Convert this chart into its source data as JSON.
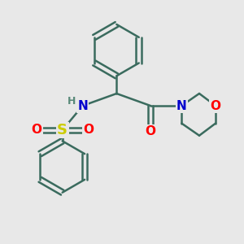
{
  "background_color": "#e8e8e8",
  "bond_color": "#3a6b5e",
  "atom_colors": {
    "N": "#0000cd",
    "O": "#ff0000",
    "S": "#cccc00",
    "H": "#5a8a7a",
    "C": "#3a6b5e"
  },
  "bond_width": 1.8,
  "font_size_atoms": 11
}
